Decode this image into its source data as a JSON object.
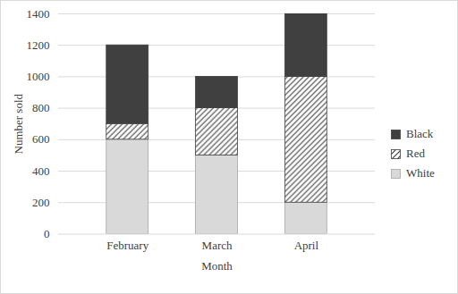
{
  "chart_data": {
    "type": "bar",
    "stacked": true,
    "x_label": "Month",
    "y_label": "Number sold",
    "categories": [
      "February",
      "March",
      "April"
    ],
    "series": [
      {
        "name": "White",
        "color": "#d9d9d9",
        "values": [
          600,
          500,
          200
        ]
      },
      {
        "name": "Red",
        "color": "#404040",
        "values": [
          100,
          300,
          800
        ]
      },
      {
        "name": "Black",
        "color": "#404040",
        "values": [
          500,
          200,
          400
        ]
      }
    ],
    "ylim": [
      0,
      1400
    ],
    "yticks": [
      0,
      200,
      400,
      600,
      800,
      1000,
      1200,
      1400
    ],
    "grid": true,
    "legend": "right"
  }
}
